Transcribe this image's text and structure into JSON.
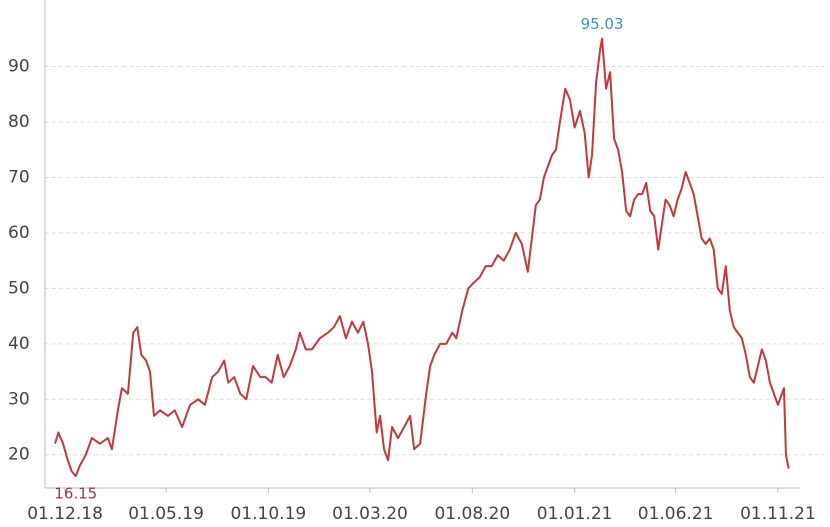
{
  "chart_data": {
    "type": "line",
    "x": [
      "2018-11-16",
      "2018-11-21",
      "2018-11-28",
      "2018-12-05",
      "2018-12-11",
      "2018-12-17",
      "2018-12-23",
      "2019-01-01",
      "2019-01-10",
      "2019-01-22",
      "2019-02-03",
      "2019-02-09",
      "2019-02-18",
      "2019-02-24",
      "2019-03-05",
      "2019-03-13",
      "2019-03-19",
      "2019-03-25",
      "2019-04-01",
      "2019-04-07",
      "2019-04-13",
      "2019-04-22",
      "2019-05-04",
      "2019-05-14",
      "2019-05-25",
      "2019-06-06",
      "2019-06-18",
      "2019-06-28",
      "2019-07-09",
      "2019-07-18",
      "2019-07-27",
      "2019-08-02",
      "2019-08-11",
      "2019-08-20",
      "2019-08-29",
      "2019-09-08",
      "2019-09-19",
      "2019-09-27",
      "2019-10-06",
      "2019-10-15",
      "2019-10-24",
      "2019-11-02",
      "2019-11-11",
      "2019-11-17",
      "2019-11-26",
      "2019-12-05",
      "2019-12-17",
      "2019-12-29",
      "2020-01-07",
      "2020-01-16",
      "2020-01-25",
      "2020-02-03",
      "2020-02-12",
      "2020-02-20",
      "2020-02-27",
      "2020-03-04",
      "2020-03-11",
      "2020-03-16",
      "2020-03-22",
      "2020-03-28",
      "2020-04-03",
      "2020-04-12",
      "2020-04-21",
      "2020-04-30",
      "2020-05-06",
      "2020-05-15",
      "2020-05-24",
      "2020-05-30",
      "2020-06-05",
      "2020-06-14",
      "2020-06-23",
      "2020-07-02",
      "2020-07-08",
      "2020-07-17",
      "2020-07-26",
      "2020-08-03",
      "2020-08-12",
      "2020-08-21",
      "2020-08-30",
      "2020-09-08",
      "2020-09-17",
      "2020-09-26",
      "2020-10-05",
      "2020-10-14",
      "2020-10-23",
      "2020-10-29",
      "2020-11-04",
      "2020-11-10",
      "2020-11-16",
      "2020-11-22",
      "2020-11-28",
      "2020-12-04",
      "2020-12-10",
      "2020-12-18",
      "2020-12-25",
      "2021-01-01",
      "2021-01-09",
      "2021-01-16",
      "2021-01-22",
      "2021-01-27",
      "2021-02-02",
      "2021-02-08",
      "2021-02-11",
      "2021-02-17",
      "2021-02-23",
      "2021-03-01",
      "2021-03-07",
      "2021-03-13",
      "2021-03-19",
      "2021-03-25",
      "2021-03-31",
      "2021-04-06",
      "2021-04-12",
      "2021-04-18",
      "2021-04-24",
      "2021-04-30",
      "2021-05-06",
      "2021-05-12",
      "2021-05-17",
      "2021-05-23",
      "2021-05-29",
      "2021-06-04",
      "2021-06-10",
      "2021-06-16",
      "2021-06-22",
      "2021-06-28",
      "2021-07-04",
      "2021-07-10",
      "2021-07-16",
      "2021-07-22",
      "2021-07-28",
      "2021-08-03",
      "2021-08-09",
      "2021-08-15",
      "2021-08-21",
      "2021-08-27",
      "2021-09-02",
      "2021-09-08",
      "2021-09-14",
      "2021-09-20",
      "2021-09-26",
      "2021-10-02",
      "2021-10-08",
      "2021-10-14",
      "2021-10-20",
      "2021-10-26",
      "2021-11-01",
      "2021-11-07",
      "2021-11-10",
      "2021-11-13",
      "2021-11-17"
    ],
    "series": [
      {
        "color": "#c0393b",
        "values": [
          22,
          24,
          22,
          19,
          17,
          16.15,
          18,
          20,
          23,
          22,
          23,
          21,
          28,
          32,
          31,
          42,
          43,
          38,
          37,
          35,
          27,
          28,
          27,
          28,
          25,
          29,
          30,
          29,
          34,
          35,
          37,
          33,
          34,
          31,
          30,
          36,
          34,
          34,
          33,
          38,
          34,
          36,
          39,
          42,
          39,
          39,
          41,
          42,
          43,
          45,
          41,
          44,
          42,
          44,
          40,
          35,
          24,
          27,
          21,
          19,
          25,
          23,
          25,
          27,
          21,
          22,
          31,
          36,
          38,
          40,
          40,
          42,
          41,
          46,
          50,
          51,
          52,
          54,
          54,
          56,
          55,
          57,
          60,
          58,
          53,
          59,
          65,
          66,
          70,
          72,
          74,
          75,
          80,
          86,
          84,
          79,
          82,
          78,
          70,
          74,
          87,
          93,
          95.03,
          86,
          89,
          77,
          75,
          71,
          64,
          63,
          66,
          67,
          67,
          69,
          64,
          63,
          57,
          62,
          66,
          65,
          63,
          66,
          68,
          71,
          69,
          67,
          63,
          59,
          58,
          59,
          57,
          50,
          49,
          54,
          46,
          43,
          42,
          41,
          38,
          34,
          33,
          36,
          39,
          37,
          33,
          31,
          29,
          31,
          32,
          20,
          17.5
        ]
      }
    ],
    "annotations": [
      {
        "x": "2018-12-17",
        "y": 16.15,
        "color": "#a0305a",
        "position": "below"
      },
      {
        "x": "2021-02-11",
        "y": 95.03,
        "color": "#3a8fc0",
        "position": "above"
      }
    ],
    "xlim": [
      "2018-11-01",
      "2021-12-04"
    ],
    "xticks": [
      {
        "value": "2018-12-01",
        "label": "01.12.18"
      },
      {
        "value": "2019-05-01",
        "label": "01.05.19"
      },
      {
        "value": "2019-10-01",
        "label": "01.10.19"
      },
      {
        "value": "2020-03-01",
        "label": "01.03.20"
      },
      {
        "value": "2020-08-01",
        "label": "01.08.20"
      },
      {
        "value": "2021-01-01",
        "label": "01.01.21"
      },
      {
        "value": "2021-06-01",
        "label": "01.06.21"
      },
      {
        "value": "2021-11-01",
        "label": "01.11.21"
      }
    ],
    "ylim": [
      14,
      102
    ],
    "yticks": [
      20,
      30,
      40,
      50,
      60,
      70,
      80,
      90
    ],
    "grid": true
  }
}
